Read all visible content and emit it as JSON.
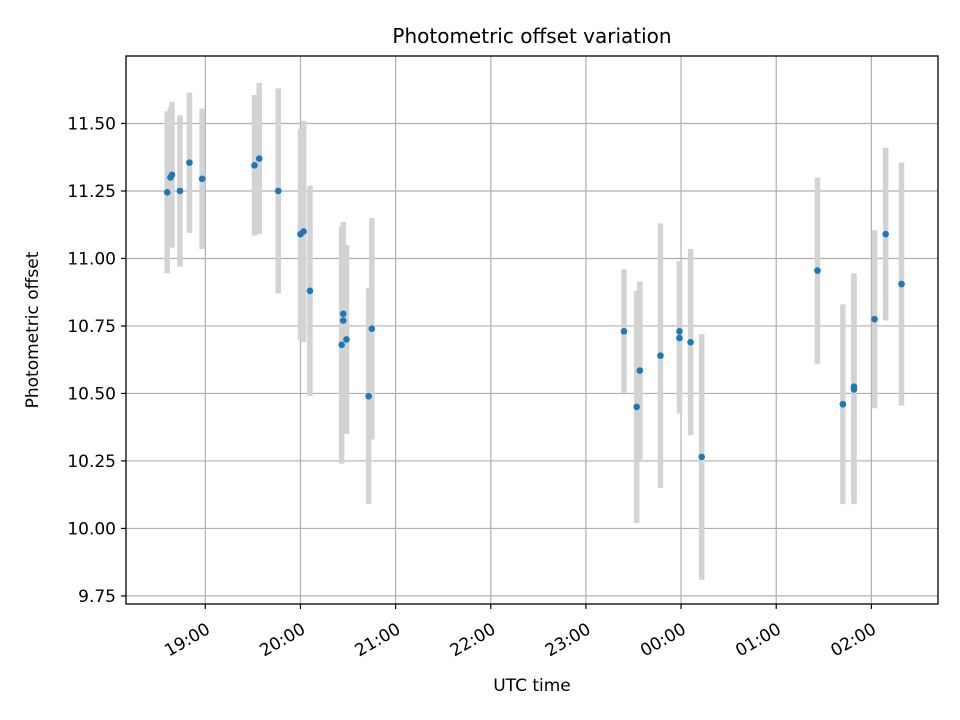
{
  "chart_data": {
    "type": "scatter",
    "title": "Photometric offset variation",
    "xlabel": "UTC time",
    "ylabel": "Photometric offset",
    "xlim": [
      "18:10",
      "02:42"
    ],
    "ylim": [
      9.72,
      11.75
    ],
    "x_ticks": [
      "19:00",
      "20:00",
      "21:00",
      "22:00",
      "23:00",
      "00:00",
      "01:00",
      "02:00"
    ],
    "y_ticks": [
      "9.75",
      "10.00",
      "10.25",
      "10.50",
      "10.75",
      "11.00",
      "11.25",
      "11.50"
    ],
    "grid": true,
    "colors": {
      "point": "#1f77b4",
      "error_bar": "#d3d3d3"
    },
    "points": [
      {
        "x": "18:36",
        "y": 11.245,
        "yerr": 0.3
      },
      {
        "x": "18:38",
        "y": 11.3,
        "yerr": 0.26
      },
      {
        "x": "18:39",
        "y": 11.31,
        "yerr": 0.27
      },
      {
        "x": "18:44",
        "y": 11.25,
        "yerr": 0.28
      },
      {
        "x": "18:50",
        "y": 11.355,
        "yerr": 0.26
      },
      {
        "x": "18:58",
        "y": 11.295,
        "yerr": 0.26
      },
      {
        "x": "19:31",
        "y": 11.345,
        "yerr": 0.26
      },
      {
        "x": "19:34",
        "y": 11.37,
        "yerr": 0.28
      },
      {
        "x": "19:46",
        "y": 11.25,
        "yerr": 0.38
      },
      {
        "x": "20:00",
        "y": 11.09,
        "yerr": 0.39
      },
      {
        "x": "20:02",
        "y": 11.1,
        "yerr": 0.41
      },
      {
        "x": "20:06",
        "y": 10.88,
        "yerr": 0.39
      },
      {
        "x": "20:26",
        "y": 10.68,
        "yerr": 0.44
      },
      {
        "x": "20:27",
        "y": 10.77,
        "yerr": 0.36
      },
      {
        "x": "20:27",
        "y": 10.795,
        "yerr": 0.34
      },
      {
        "x": "20:29",
        "y": 10.7,
        "yerr": 0.35
      },
      {
        "x": "20:43",
        "y": 10.49,
        "yerr": 0.4
      },
      {
        "x": "20:45",
        "y": 10.74,
        "yerr": 0.41
      },
      {
        "x": "23:24",
        "y": 10.73,
        "yerr": 0.23
      },
      {
        "x": "23:32",
        "y": 10.45,
        "yerr": 0.43
      },
      {
        "x": "23:34",
        "y": 10.585,
        "yerr": 0.33
      },
      {
        "x": "23:47",
        "y": 10.64,
        "yerr": 0.49
      },
      {
        "x": "23:59",
        "y": 10.705,
        "yerr": 0.28
      },
      {
        "x": "23:59",
        "y": 10.73,
        "yerr": 0.26
      },
      {
        "x": "00:06",
        "y": 10.69,
        "yerr": 0.345
      },
      {
        "x": "00:13",
        "y": 10.265,
        "yerr": 0.455
      },
      {
        "x": "01:26",
        "y": 10.955,
        "yerr": 0.345
      },
      {
        "x": "01:42",
        "y": 10.46,
        "yerr": 0.37
      },
      {
        "x": "01:49",
        "y": 10.515,
        "yerr": 0.425
      },
      {
        "x": "01:49",
        "y": 10.525,
        "yerr": 0.42
      },
      {
        "x": "02:02",
        "y": 10.775,
        "yerr": 0.33
      },
      {
        "x": "02:09",
        "y": 11.09,
        "yerr": 0.32
      },
      {
        "x": "02:19",
        "y": 10.905,
        "yerr": 0.45
      }
    ]
  }
}
